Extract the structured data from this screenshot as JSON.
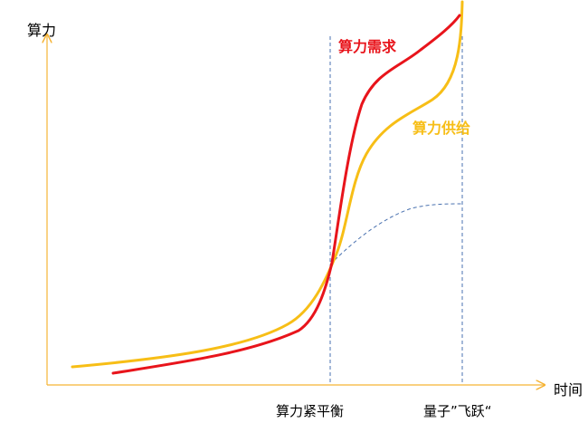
{
  "axes": {
    "y_label": "算力",
    "x_label": "时间",
    "color": "#F5B335"
  },
  "curves": {
    "demand": {
      "label": "算力需求",
      "color": "#E8141B"
    },
    "supply": {
      "label": "算力供给",
      "color": "#F7BE16"
    },
    "classic": {
      "color": "#4A72B0"
    }
  },
  "markers": {
    "balance": "算力紧平衡",
    "quantum": "量子”飞跃“"
  }
}
